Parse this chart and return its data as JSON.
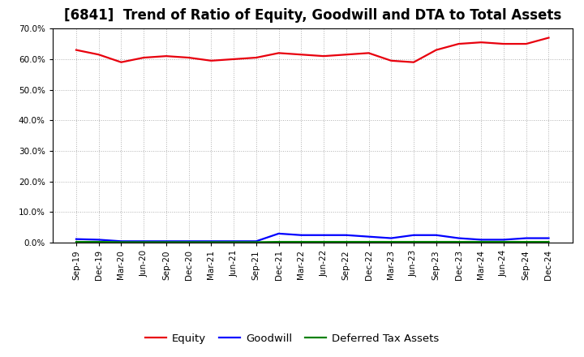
{
  "title": "[6841]  Trend of Ratio of Equity, Goodwill and DTA to Total Assets",
  "x_labels": [
    "Sep-19",
    "Dec-19",
    "Mar-20",
    "Jun-20",
    "Sep-20",
    "Dec-20",
    "Mar-21",
    "Jun-21",
    "Sep-21",
    "Dec-21",
    "Mar-22",
    "Jun-22",
    "Sep-22",
    "Dec-22",
    "Mar-23",
    "Jun-23",
    "Sep-23",
    "Dec-23",
    "Mar-24",
    "Jun-24",
    "Sep-24",
    "Dec-24"
  ],
  "equity": [
    63.0,
    61.5,
    59.0,
    60.5,
    61.0,
    60.5,
    59.5,
    60.0,
    60.5,
    62.0,
    61.5,
    61.0,
    61.5,
    62.0,
    59.5,
    59.0,
    63.0,
    65.0,
    65.5,
    65.0,
    65.0,
    67.0
  ],
  "goodwill": [
    1.2,
    1.0,
    0.5,
    0.5,
    0.5,
    0.5,
    0.5,
    0.5,
    0.5,
    3.0,
    2.5,
    2.5,
    2.5,
    2.0,
    1.5,
    2.5,
    2.5,
    1.5,
    1.0,
    1.0,
    1.5,
    1.5
  ],
  "dta": [
    0.3,
    0.3,
    0.2,
    0.2,
    0.2,
    0.2,
    0.2,
    0.2,
    0.2,
    0.3,
    0.3,
    0.3,
    0.3,
    0.3,
    0.3,
    0.3,
    0.3,
    0.3,
    0.3,
    0.3,
    0.3,
    0.3
  ],
  "equity_color": "#e8000d",
  "goodwill_color": "#0000ff",
  "dta_color": "#008000",
  "bg_color": "#ffffff",
  "plot_bg_color": "#ffffff",
  "ylim": [
    0,
    70
  ],
  "yticks": [
    0,
    10,
    20,
    30,
    40,
    50,
    60,
    70
  ],
  "legend_labels": [
    "Equity",
    "Goodwill",
    "Deferred Tax Assets"
  ],
  "line_width": 1.6,
  "title_fontsize": 12,
  "tick_fontsize": 7.5,
  "legend_fontsize": 9.5
}
